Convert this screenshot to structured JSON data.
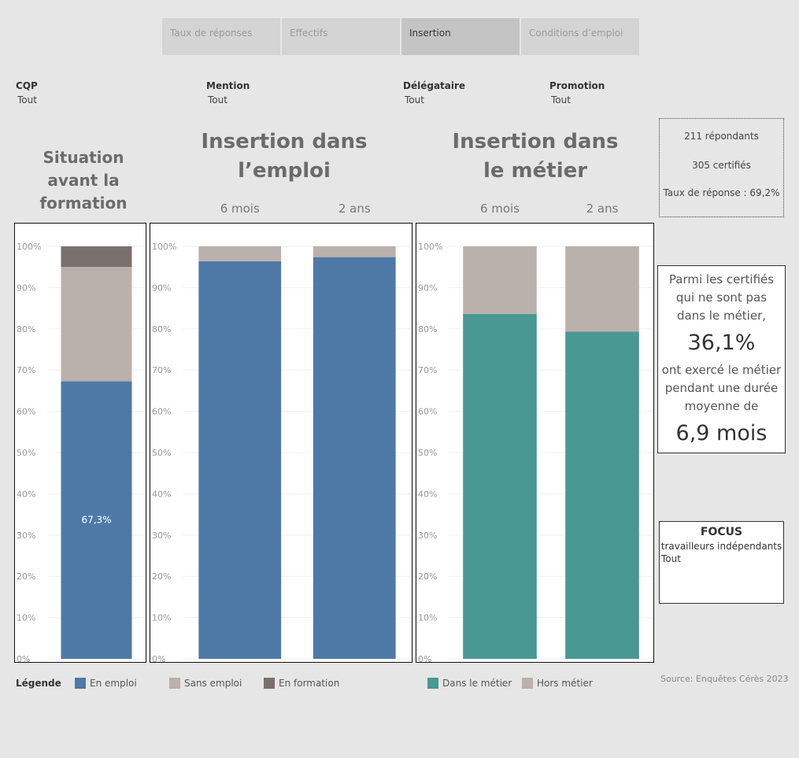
{
  "tabs": [
    "Taux de réponses",
    "Effectifs",
    "Insertion",
    "Conditions d’emploi"
  ],
  "active_tab": 2,
  "filters": [
    {
      "label": "CQP",
      "value": "Tout"
    },
    {
      "label": "Mention",
      "value": "Tout"
    },
    {
      "label": "Délégataire",
      "value": "Tout"
    },
    {
      "label": "Promotion",
      "value": "Tout"
    }
  ],
  "stats": {
    "respondents": "211 répondants",
    "certified": "305 certifiés",
    "rate_label": "Taux de réponse :",
    "rate": "69,2%"
  },
  "callout": {
    "intro": "Parmi les certifiés qui ne sont pas dans le métier,",
    "share": "36,1%",
    "middle": "ont exercé le métier pendant une durée moyenne de",
    "duration": "6,9 mois"
  },
  "focus": {
    "title": "FOCUS",
    "subtitle": "travailleurs indépendants",
    "value": "Tout"
  },
  "legend_title": "Légende",
  "source": "Source: Enquêtes Cérès 2023",
  "chart_data": [
    {
      "type": "bar",
      "stacked": true,
      "title": "Situation avant la formation",
      "categories": [
        null
      ],
      "series": [
        {
          "name": "En emploi",
          "color": "#4e79a7",
          "values": [
            67.3
          ],
          "value_labels": [
            "67,3%"
          ]
        },
        {
          "name": "Sans emploi",
          "color": "#bab0ac",
          "values": [
            27.7
          ]
        },
        {
          "name": "En formation",
          "color": "#79706e",
          "values": [
            5.0
          ]
        }
      ],
      "ylim": [
        0,
        100
      ],
      "yticks": [
        {
          "value": 0,
          "label": "0%"
        },
        {
          "value": 10,
          "label": "10%"
        },
        {
          "value": 20,
          "label": "20%"
        },
        {
          "value": 30,
          "label": "30%"
        },
        {
          "value": 40,
          "label": "40%"
        },
        {
          "value": 50,
          "label": "50%"
        },
        {
          "value": 60,
          "label": "60%"
        },
        {
          "value": 70,
          "label": "70%"
        },
        {
          "value": 80,
          "label": "80%"
        },
        {
          "value": 90,
          "label": "90%"
        },
        {
          "value": 100,
          "label": "100%"
        }
      ],
      "grid": true
    },
    {
      "type": "bar",
      "stacked": true,
      "title": "Insertion dans l’emploi",
      "categories": [
        "6 mois",
        "2 ans"
      ],
      "series": [
        {
          "name": "En emploi",
          "color": "#4e79a7",
          "values": [
            96.4,
            97.4
          ]
        },
        {
          "name": "Sans emploi",
          "color": "#bab0ac",
          "values": [
            3.6,
            2.6
          ]
        }
      ],
      "ylim": [
        0,
        100
      ],
      "yticks": [
        {
          "value": 0,
          "label": "0%"
        },
        {
          "value": 10,
          "label": "10%"
        },
        {
          "value": 20,
          "label": "20%"
        },
        {
          "value": 30,
          "label": "30%"
        },
        {
          "value": 40,
          "label": "40%"
        },
        {
          "value": 50,
          "label": "50%"
        },
        {
          "value": 60,
          "label": "60%"
        },
        {
          "value": 70,
          "label": "70%"
        },
        {
          "value": 80,
          "label": "80%"
        },
        {
          "value": 90,
          "label": "90%"
        },
        {
          "value": 100,
          "label": "100%"
        }
      ],
      "grid": true
    },
    {
      "type": "bar",
      "stacked": true,
      "title": "Insertion dans le métier",
      "categories": [
        "6 mois",
        "2 ans"
      ],
      "series": [
        {
          "name": "Dans le métier",
          "color": "#499894",
          "values": [
            83.6,
            79.3
          ]
        },
        {
          "name": "Hors métier",
          "color": "#bab0ac",
          "values": [
            16.4,
            20.7
          ]
        }
      ],
      "ylim": [
        0,
        100
      ],
      "yticks": [
        {
          "value": 0,
          "label": "0%"
        },
        {
          "value": 10,
          "label": "10%"
        },
        {
          "value": 20,
          "label": "20%"
        },
        {
          "value": 30,
          "label": "30%"
        },
        {
          "value": 40,
          "label": "40%"
        },
        {
          "value": 50,
          "label": "50%"
        },
        {
          "value": 60,
          "label": "60%"
        },
        {
          "value": 70,
          "label": "70%"
        },
        {
          "value": 80,
          "label": "80%"
        },
        {
          "value": 90,
          "label": "90%"
        },
        {
          "value": 100,
          "label": "100%"
        }
      ],
      "grid": true
    }
  ]
}
